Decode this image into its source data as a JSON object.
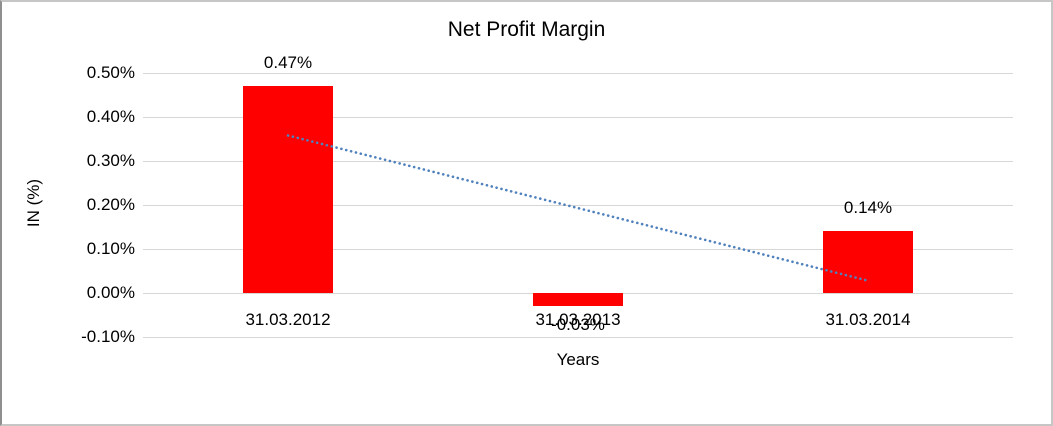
{
  "chart_data": {
    "type": "bar",
    "title": "Net Profit Margin",
    "xlabel": "Years",
    "ylabel": "IN (%)",
    "categories": [
      "31.03.2012",
      "31.03.2013",
      "31.03.2014"
    ],
    "series": [
      {
        "name": "Net Profit Margin",
        "color": "#FF0000",
        "values": [
          0.47,
          -0.03,
          0.14
        ]
      }
    ],
    "data_labels": [
      "0.47%",
      "-0.03%",
      "0.14%"
    ],
    "ylim": [
      -0.1,
      0.5
    ],
    "ytick_step": 0.1,
    "yticks": [
      {
        "value": 0.5,
        "label": "0.50%"
      },
      {
        "value": 0.4,
        "label": "0.40%"
      },
      {
        "value": 0.3,
        "label": "0.30%"
      },
      {
        "value": 0.2,
        "label": "0.20%"
      },
      {
        "value": 0.1,
        "label": "0.10%"
      },
      {
        "value": 0.0,
        "label": "0.00%"
      },
      {
        "value": -0.1,
        "label": "-0.10%"
      }
    ],
    "grid": true,
    "legend": false,
    "gridline_color": "#d6d6d6",
    "bar_color": "#FF0000",
    "text_color": "#000000",
    "trendline": {
      "type": "linear",
      "style": "dotted",
      "color": "#4F81BD",
      "start_value": 0.358,
      "end_value": 0.028
    }
  }
}
